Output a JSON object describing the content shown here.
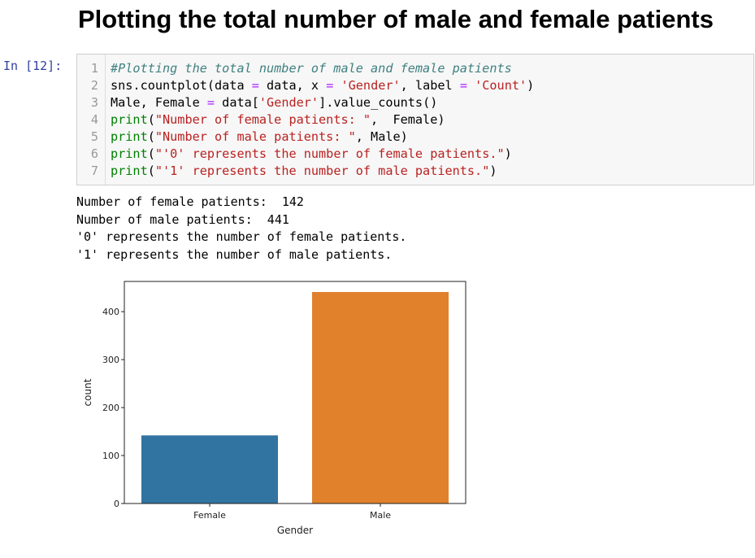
{
  "heading": "Plotting the total number of male and female patients",
  "cell": {
    "prompt": "In [12]:",
    "lines": [
      {
        "num": "1",
        "parts": [
          {
            "t": "#Plotting the total number of male and female patients",
            "c": "cm"
          }
        ]
      },
      {
        "num": "2",
        "parts": [
          {
            "t": "sns.countplot(data ",
            "c": ""
          },
          {
            "t": "=",
            "c": "op"
          },
          {
            "t": " data, x ",
            "c": ""
          },
          {
            "t": "=",
            "c": "op"
          },
          {
            "t": " ",
            "c": ""
          },
          {
            "t": "'Gender'",
            "c": "st"
          },
          {
            "t": ", label ",
            "c": ""
          },
          {
            "t": "=",
            "c": "op"
          },
          {
            "t": " ",
            "c": ""
          },
          {
            "t": "'Count'",
            "c": "st"
          },
          {
            "t": ")",
            "c": ""
          }
        ]
      },
      {
        "num": "3",
        "parts": [
          {
            "t": "Male, Female ",
            "c": ""
          },
          {
            "t": "=",
            "c": "op"
          },
          {
            "t": " data[",
            "c": ""
          },
          {
            "t": "'Gender'",
            "c": "st"
          },
          {
            "t": "].value_counts()",
            "c": ""
          }
        ]
      },
      {
        "num": "4",
        "parts": [
          {
            "t": "print",
            "c": "kw"
          },
          {
            "t": "(",
            "c": ""
          },
          {
            "t": "\"Number of female patients: \"",
            "c": "st"
          },
          {
            "t": ",  Female)",
            "c": ""
          }
        ]
      },
      {
        "num": "5",
        "parts": [
          {
            "t": "print",
            "c": "kw"
          },
          {
            "t": "(",
            "c": ""
          },
          {
            "t": "\"Number of male patients: \"",
            "c": "st"
          },
          {
            "t": ", Male)",
            "c": ""
          }
        ]
      },
      {
        "num": "6",
        "parts": [
          {
            "t": "print",
            "c": "kw"
          },
          {
            "t": "(",
            "c": ""
          },
          {
            "t": "\"'0' represents the number of female patients.\"",
            "c": "st"
          },
          {
            "t": ")",
            "c": ""
          }
        ]
      },
      {
        "num": "7",
        "parts": [
          {
            "t": "print",
            "c": "kw"
          },
          {
            "t": "(",
            "c": ""
          },
          {
            "t": "\"'1' represents the number of male patients.\"",
            "c": "st"
          },
          {
            "t": ")",
            "c": ""
          }
        ]
      }
    ]
  },
  "output": {
    "lines": [
      "Number of female patients:  142",
      "Number of male patients:  441",
      "'0' represents the number of female patients.",
      "'1' represents the number of male patients."
    ]
  },
  "chart_data": {
    "type": "bar",
    "categories": [
      "Female",
      "Male"
    ],
    "values": [
      142,
      441
    ],
    "colors": [
      "#3274a1",
      "#e1812c"
    ],
    "title": "",
    "xlabel": "Gender",
    "ylabel": "count",
    "ylim": [
      0,
      463
    ],
    "yticks": [
      0,
      100,
      200,
      300,
      400
    ],
    "grid": false
  }
}
